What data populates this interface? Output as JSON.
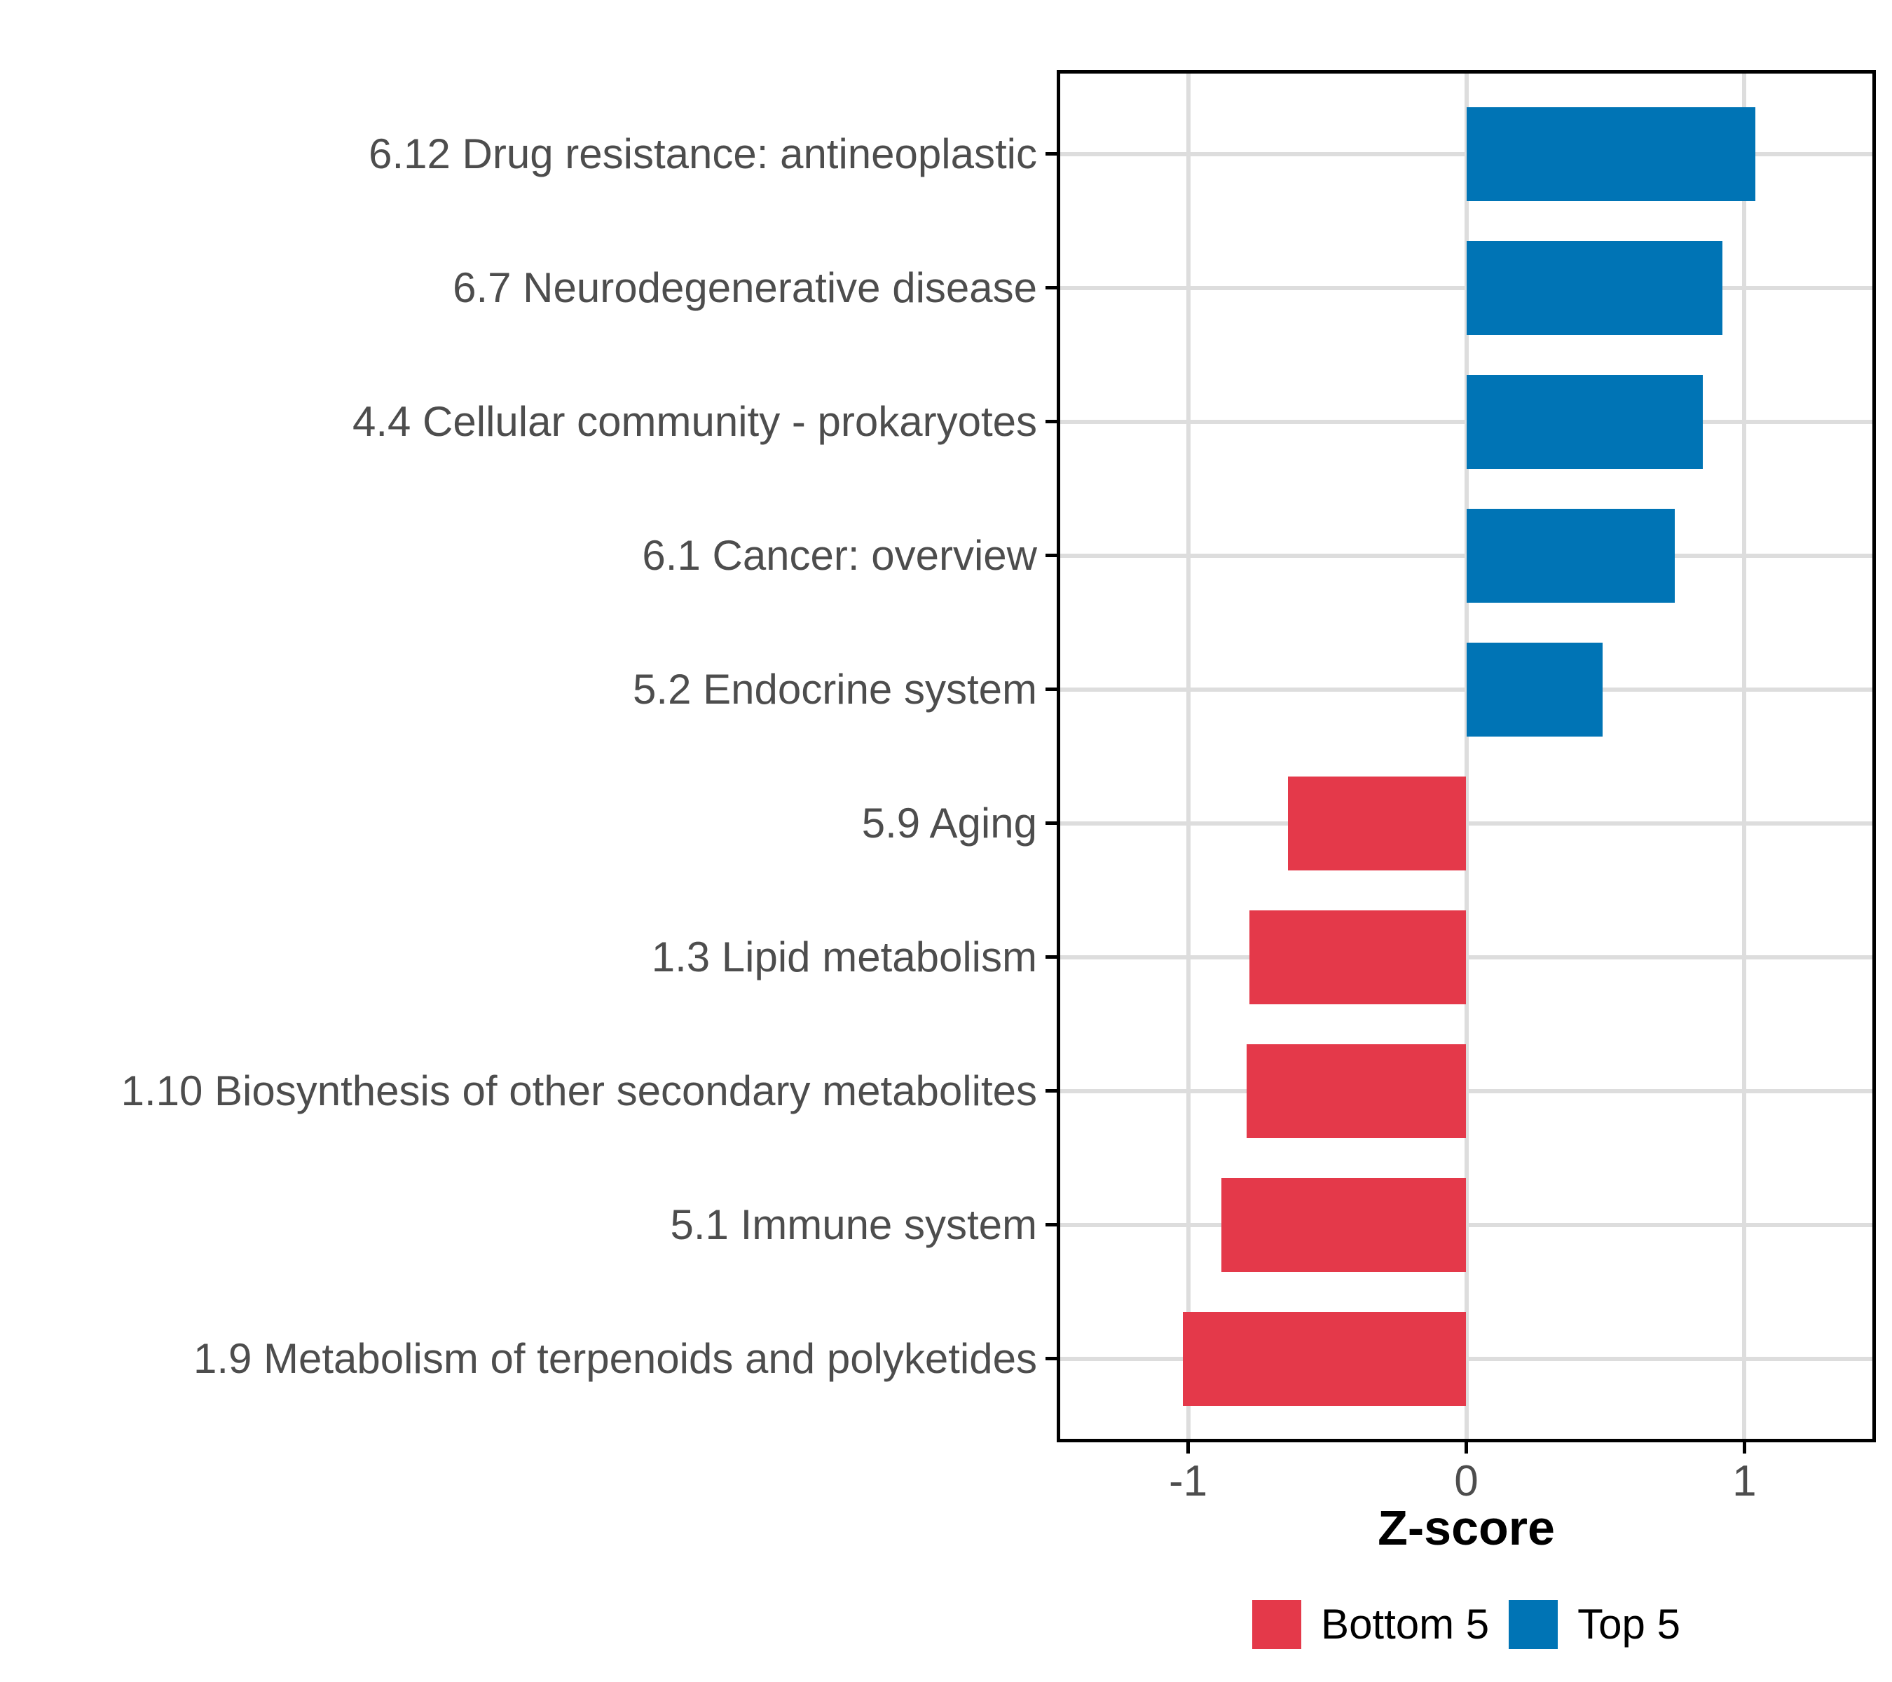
{
  "chart_data": {
    "type": "bar",
    "orientation": "horizontal",
    "title": "",
    "xlabel": "Z-score",
    "ylabel": "",
    "categories": [
      "6.12 Drug resistance: antineoplastic",
      "6.7 Neurodegenerative disease",
      "4.4 Cellular community - prokaryotes",
      "6.1 Cancer: overview",
      "5.2 Endocrine system",
      "5.9 Aging",
      "1.3 Lipid metabolism",
      "1.10 Biosynthesis of other secondary metabolites",
      "5.1 Immune system",
      "1.9 Metabolism of terpenoids and polyketides"
    ],
    "values": [
      1.04,
      0.92,
      0.85,
      0.75,
      0.49,
      -0.64,
      -0.78,
      -0.79,
      -0.88,
      -1.02
    ],
    "groups": [
      "Top 5",
      "Top 5",
      "Top 5",
      "Top 5",
      "Top 5",
      "Bottom 5",
      "Bottom 5",
      "Bottom 5",
      "Bottom 5",
      "Bottom 5"
    ],
    "group_colors": {
      "Top 5": "#0074B5",
      "Bottom 5": "#E4394A"
    },
    "x_ticks": [
      {
        "value": -1,
        "label": "-1"
      },
      {
        "value": 0,
        "label": "0"
      },
      {
        "value": 1,
        "label": "1"
      }
    ],
    "xlim": [
      -1.46,
      1.46
    ],
    "grid": "major",
    "legend": {
      "position": "bottom",
      "entries": [
        {
          "label": "Bottom 5",
          "color": "#E4394A"
        },
        {
          "label": "Top 5",
          "color": "#0074B5"
        }
      ]
    }
  },
  "style": {
    "background": "#FFFFFF",
    "bar_blue": "#0074B5",
    "bar_red": "#E4394A",
    "gridline_color": "#DDDDDD",
    "axis_text_color": "#4D4D4D",
    "axis_title_color": "#000000",
    "panel_border_color": "#000000",
    "tick_color": "#000000"
  }
}
